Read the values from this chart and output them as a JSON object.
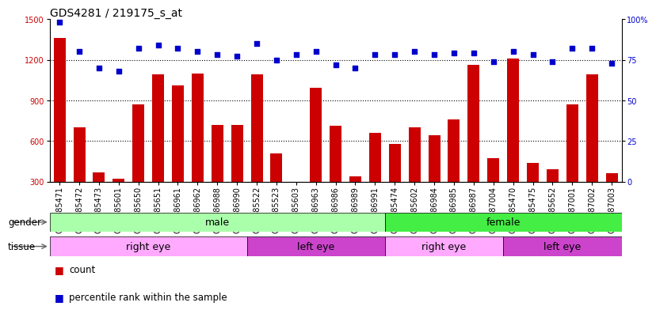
{
  "title": "GDS4281 / 219175_s_at",
  "samples": [
    "GSM685471",
    "GSM685472",
    "GSM685473",
    "GSM685601",
    "GSM685650",
    "GSM685651",
    "GSM686961",
    "GSM686962",
    "GSM686988",
    "GSM686990",
    "GSM685522",
    "GSM685523",
    "GSM685603",
    "GSM686963",
    "GSM686986",
    "GSM686989",
    "GSM686991",
    "GSM685474",
    "GSM685602",
    "GSM686984",
    "GSM686985",
    "GSM686987",
    "GSM687004",
    "GSM685470",
    "GSM685475",
    "GSM685652",
    "GSM687001",
    "GSM687002",
    "GSM687003"
  ],
  "counts": [
    1360,
    700,
    370,
    320,
    870,
    1090,
    1010,
    1100,
    720,
    720,
    1090,
    510,
    300,
    990,
    710,
    340,
    660,
    580,
    700,
    640,
    760,
    1160,
    470,
    1210,
    440,
    390,
    870,
    1090,
    360
  ],
  "percentiles": [
    98,
    80,
    70,
    68,
    82,
    84,
    82,
    80,
    78,
    77,
    85,
    75,
    78,
    80,
    72,
    70,
    78,
    78,
    80,
    78,
    79,
    79,
    74,
    80,
    78,
    74,
    82,
    82,
    73
  ],
  "ylim_left": [
    300,
    1500
  ],
  "ylim_right": [
    0,
    100
  ],
  "yticks_left": [
    300,
    600,
    900,
    1200,
    1500
  ],
  "yticks_right": [
    0,
    25,
    50,
    75,
    100
  ],
  "bar_color": "#cc0000",
  "dot_color": "#0000cc",
  "gender_regions": [
    {
      "label": "male",
      "start": 0,
      "end": 17,
      "color": "#aaffaa"
    },
    {
      "label": "female",
      "start": 17,
      "end": 29,
      "color": "#44ee44"
    }
  ],
  "tissue_regions": [
    {
      "label": "right eye",
      "start": 0,
      "end": 10,
      "color": "#ffaaff"
    },
    {
      "label": "left eye",
      "start": 10,
      "end": 17,
      "color": "#cc44cc"
    },
    {
      "label": "right eye",
      "start": 17,
      "end": 23,
      "color": "#ffaaff"
    },
    {
      "label": "left eye",
      "start": 23,
      "end": 29,
      "color": "#cc44cc"
    }
  ],
  "background_color": "#ffffff",
  "title_fontsize": 10,
  "tick_fontsize": 7,
  "label_fontsize": 9
}
